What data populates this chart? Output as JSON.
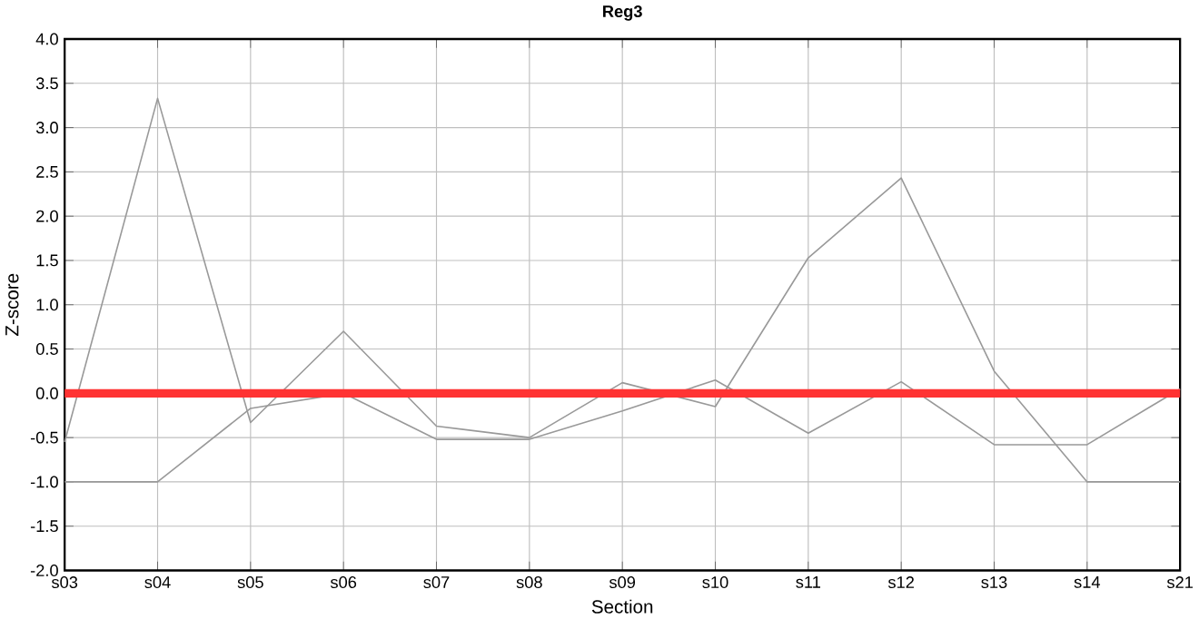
{
  "chart_data": {
    "type": "line",
    "title": "Reg3",
    "xlabel": "Section",
    "ylabel": "Z-score",
    "categories": [
      "s03",
      "s04",
      "s05",
      "s06",
      "s07",
      "s08",
      "s09",
      "s10",
      "s11",
      "s12",
      "s13",
      "s14",
      "s21"
    ],
    "series": [
      {
        "color": "#999999",
        "values": [
          -0.55,
          3.33,
          -0.33,
          0.7,
          -0.37,
          -0.5,
          0.12,
          -0.15,
          1.53,
          2.43,
          0.25,
          -1.0,
          -1.0
        ]
      },
      {
        "color": "#999999",
        "values": [
          -1.0,
          -1.0,
          -0.17,
          0.0,
          -0.52,
          -0.52,
          -0.2,
          0.15,
          -0.45,
          0.13,
          -0.58,
          -0.58,
          0.05
        ]
      }
    ],
    "ylim": [
      -2.0,
      4.0
    ],
    "yticks": [
      {
        "value": -2,
        "label": "-2.0"
      },
      {
        "value": -1.5,
        "label": "-1.5"
      },
      {
        "value": -1,
        "label": "-1.0"
      },
      {
        "value": -0.5,
        "label": "-0.5"
      },
      {
        "value": 0,
        "label": "0.0"
      },
      {
        "value": 0.5,
        "label": "0.5"
      },
      {
        "value": 1,
        "label": "1.0"
      },
      {
        "value": 1.5,
        "label": "1.5"
      },
      {
        "value": 2,
        "label": "2.0"
      },
      {
        "value": 2.5,
        "label": "2.5"
      },
      {
        "value": 3,
        "label": "3.0"
      },
      {
        "value": 3.5,
        "label": "3.5"
      },
      {
        "value": 4,
        "label": "4.0"
      }
    ],
    "ref_lines": [
      {
        "axis": "y",
        "value": 0,
        "color": "#ff3333"
      }
    ],
    "grid": true,
    "marker": "none",
    "line_style": "solid"
  }
}
